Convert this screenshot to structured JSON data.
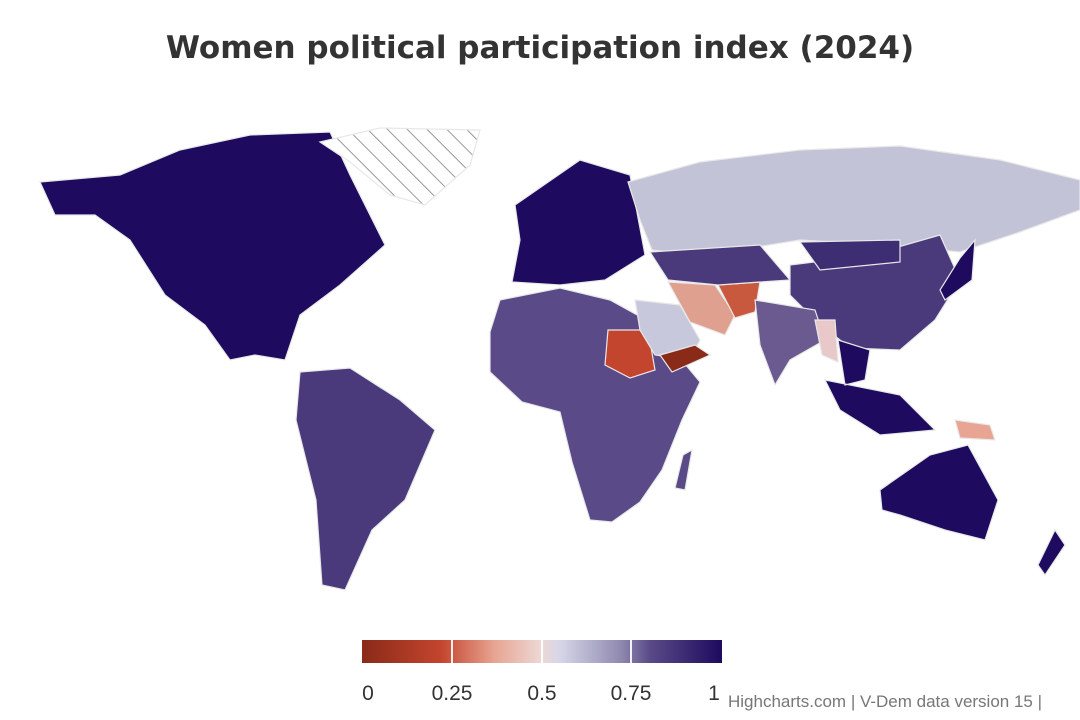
{
  "title": "Women political participation index (2024)",
  "legend": {
    "ticks": [
      "0",
      "0.25",
      "0.5",
      "0.75",
      "1"
    ],
    "min": 0,
    "max": 1,
    "colors": [
      "#8a2a18",
      "#e8a593",
      "#d6d6e8",
      "#5a4a88",
      "#1e0a5e"
    ]
  },
  "credits": "Highcharts.com | V-Dem data version 15 |",
  "chart_data": {
    "type": "heatmap",
    "title": "Women political participation index (2024)",
    "color_axis": {
      "min": 0,
      "max": 1,
      "ticks": [
        0,
        0.25,
        0.5,
        0.75,
        1
      ]
    },
    "regions": [
      {
        "name": "North America",
        "value": 0.95
      },
      {
        "name": "Greenland",
        "value": null
      },
      {
        "name": "South America",
        "value": 0.85
      },
      {
        "name": "Europe",
        "value": 0.95
      },
      {
        "name": "Russia",
        "value": 0.55
      },
      {
        "name": "Africa",
        "value": 0.8
      },
      {
        "name": "Sudan",
        "value": 0.12
      },
      {
        "name": "Saudi Arabia",
        "value": 0.55
      },
      {
        "name": "Iran",
        "value": 0.3
      },
      {
        "name": "Yemen",
        "value": 0.05
      },
      {
        "name": "Afghanistan",
        "value": 0.15
      },
      {
        "name": "China",
        "value": 0.8
      },
      {
        "name": "India",
        "value": 0.75
      },
      {
        "name": "Myanmar",
        "value": 0.4
      },
      {
        "name": "Southeast Asia",
        "value": 0.9
      },
      {
        "name": "Papua New Guinea",
        "value": 0.35
      },
      {
        "name": "Australia",
        "value": 0.97
      },
      {
        "name": "New Zealand",
        "value": 0.97
      },
      {
        "name": "Japan",
        "value": 0.9
      }
    ]
  }
}
